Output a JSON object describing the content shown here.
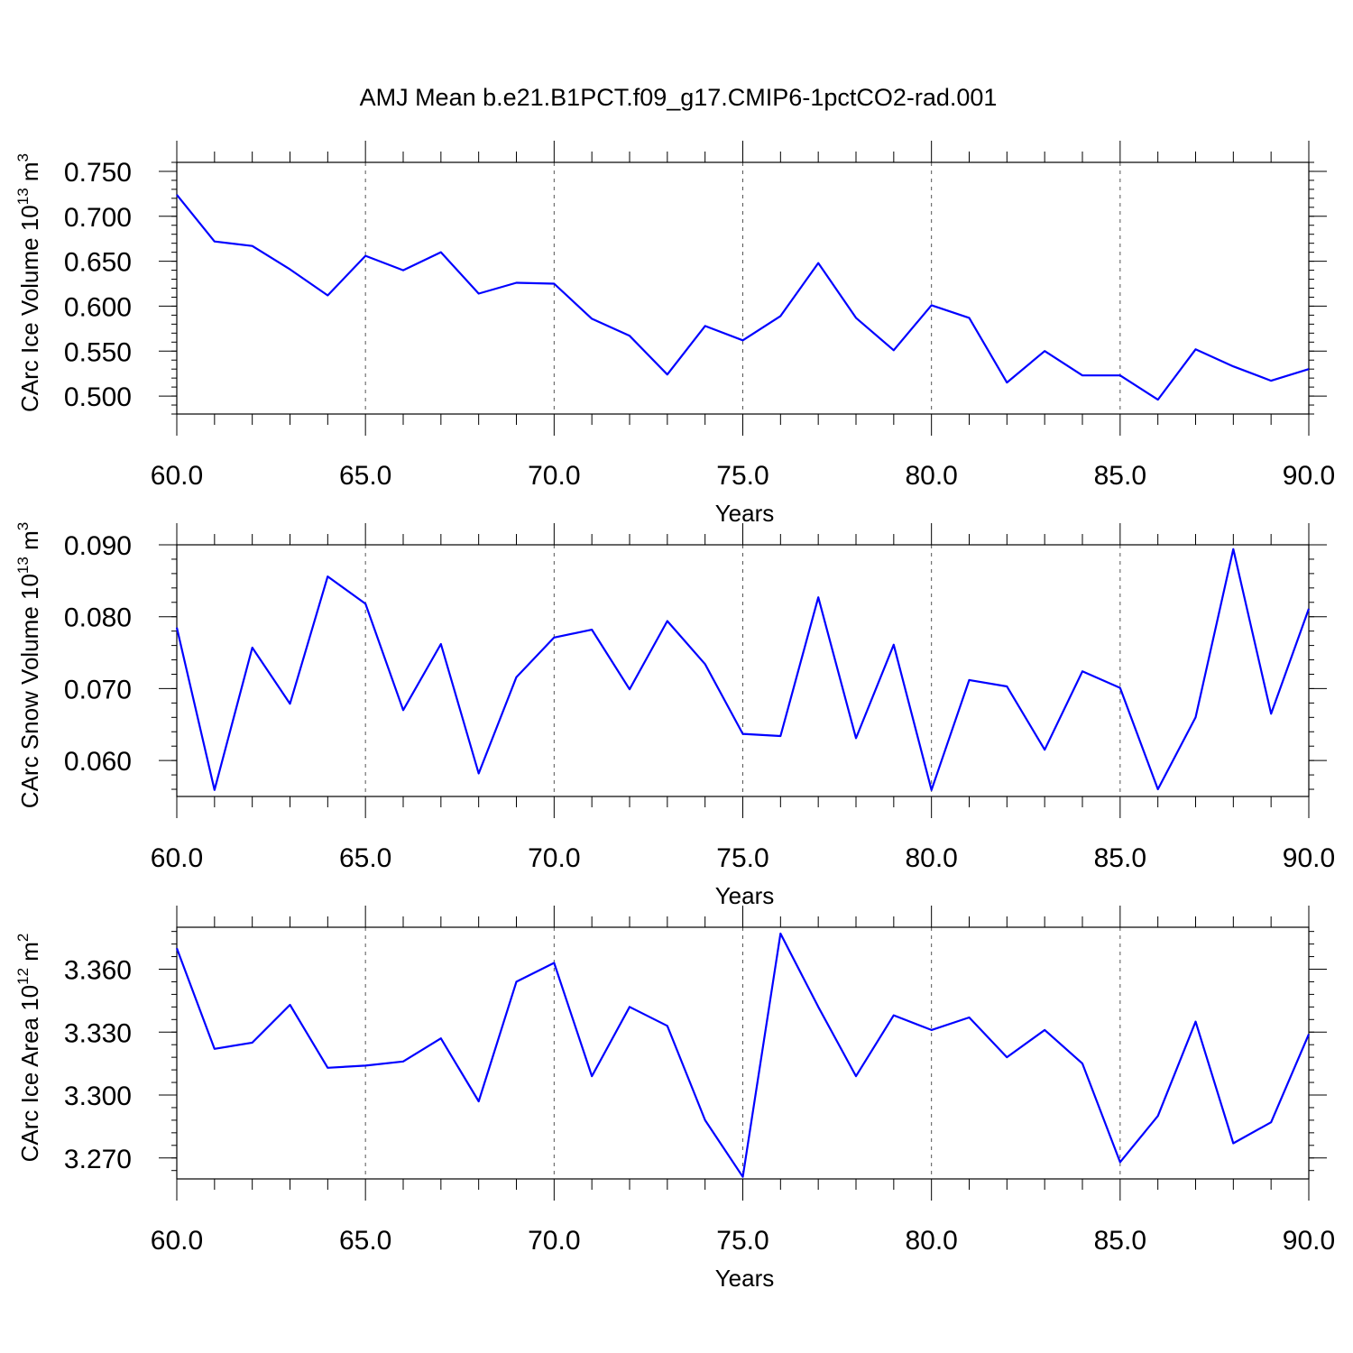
{
  "chart_data": {
    "title": "AMJ Mean b.e21.B1PCT.f09_g17.CMIP6-1pctCO2-rad.001",
    "series_color": "#0000ff",
    "panels": [
      {
        "type": "line",
        "ylabel": "CArc Ice Volume 10",
        "ylabel_exp": "13",
        "ylabel_unit": " m",
        "ylabel_unit_exp": "3",
        "xlabel": "Years",
        "xlim": [
          60,
          90
        ],
        "ylim": [
          0.48,
          0.76
        ],
        "yticks": [
          0.5,
          0.55,
          0.6,
          0.65,
          0.7,
          0.75
        ],
        "ytick_labels": [
          "0.500",
          "0.550",
          "0.600",
          "0.650",
          "0.700",
          "0.750"
        ],
        "yminor_step": 0.01,
        "xticks": [
          60,
          65,
          70,
          75,
          80,
          85,
          90
        ],
        "xtick_labels": [
          "60.0",
          "65.0",
          "70.0",
          "75.0",
          "80.0",
          "85.0",
          "90.0"
        ],
        "grid_x": [
          65,
          70,
          75,
          80,
          85
        ],
        "x": [
          60,
          61,
          62,
          63,
          64,
          65,
          66,
          67,
          68,
          69,
          70,
          71,
          72,
          73,
          74,
          75,
          76,
          77,
          78,
          79,
          80,
          81,
          82,
          83,
          84,
          85,
          86,
          87,
          88,
          89,
          90
        ],
        "y": [
          0.724,
          0.672,
          0.667,
          0.641,
          0.612,
          0.656,
          0.64,
          0.66,
          0.614,
          0.626,
          0.625,
          0.586,
          0.567,
          0.524,
          0.578,
          0.562,
          0.589,
          0.648,
          0.587,
          0.551,
          0.601,
          0.587,
          0.515,
          0.55,
          0.523,
          0.523,
          0.496,
          0.552,
          0.533,
          0.517,
          0.53
        ]
      },
      {
        "type": "line",
        "ylabel": "CArc Snow Volume 10",
        "ylabel_exp": "13",
        "ylabel_unit": " m",
        "ylabel_unit_exp": "3",
        "xlabel": "Years",
        "xlim": [
          60,
          90
        ],
        "ylim": [
          0.055,
          0.09
        ],
        "yticks": [
          0.06,
          0.07,
          0.08,
          0.09
        ],
        "ytick_labels": [
          "0.060",
          "0.070",
          "0.080",
          "0.090"
        ],
        "yminor_step": 0.002,
        "xticks": [
          60,
          65,
          70,
          75,
          80,
          85,
          90
        ],
        "xtick_labels": [
          "60.0",
          "65.0",
          "70.0",
          "75.0",
          "80.0",
          "85.0",
          "90.0"
        ],
        "grid_x": [
          65,
          70,
          75,
          80,
          85
        ],
        "x": [
          60,
          61,
          62,
          63,
          64,
          65,
          66,
          67,
          68,
          69,
          70,
          71,
          72,
          73,
          74,
          75,
          76,
          77,
          78,
          79,
          80,
          81,
          82,
          83,
          84,
          85,
          86,
          87,
          88,
          89,
          90
        ],
        "y": [
          0.0785,
          0.0559,
          0.0757,
          0.0679,
          0.0856,
          0.0818,
          0.067,
          0.0762,
          0.0582,
          0.0716,
          0.0771,
          0.0782,
          0.0699,
          0.0794,
          0.0734,
          0.0637,
          0.0634,
          0.0827,
          0.0631,
          0.0761,
          0.0559,
          0.0712,
          0.0703,
          0.0615,
          0.0724,
          0.0701,
          0.056,
          0.066,
          0.0894,
          0.0665,
          0.0811
        ]
      },
      {
        "type": "line",
        "ylabel": "CArc Ice Area 10",
        "ylabel_exp": "12",
        "ylabel_unit": " m",
        "ylabel_unit_exp": "2",
        "xlabel": "Years",
        "xlim": [
          60,
          90
        ],
        "ylim": [
          3.26,
          3.38
        ],
        "yticks": [
          3.27,
          3.3,
          3.33,
          3.36
        ],
        "ytick_labels": [
          "3.270",
          "3.300",
          "3.330",
          "3.360"
        ],
        "yminor_step": 0.006,
        "xticks": [
          60,
          65,
          70,
          75,
          80,
          85,
          90
        ],
        "xtick_labels": [
          "60.0",
          "65.0",
          "70.0",
          "75.0",
          "80.0",
          "85.0",
          "90.0"
        ],
        "grid_x": [
          65,
          70,
          75,
          80,
          85
        ],
        "x": [
          60,
          61,
          62,
          63,
          64,
          65,
          66,
          67,
          68,
          69,
          70,
          71,
          72,
          73,
          74,
          75,
          76,
          77,
          78,
          79,
          80,
          81,
          82,
          83,
          84,
          85,
          86,
          87,
          88,
          89,
          90
        ],
        "y": [
          3.37,
          3.322,
          3.325,
          3.343,
          3.313,
          3.314,
          3.316,
          3.327,
          3.297,
          3.354,
          3.363,
          3.309,
          3.342,
          3.333,
          3.288,
          3.261,
          3.377,
          3.342,
          3.309,
          3.338,
          3.331,
          3.337,
          3.318,
          3.331,
          3.315,
          3.268,
          3.29,
          3.335,
          3.277,
          3.287,
          3.329
        ]
      }
    ]
  }
}
